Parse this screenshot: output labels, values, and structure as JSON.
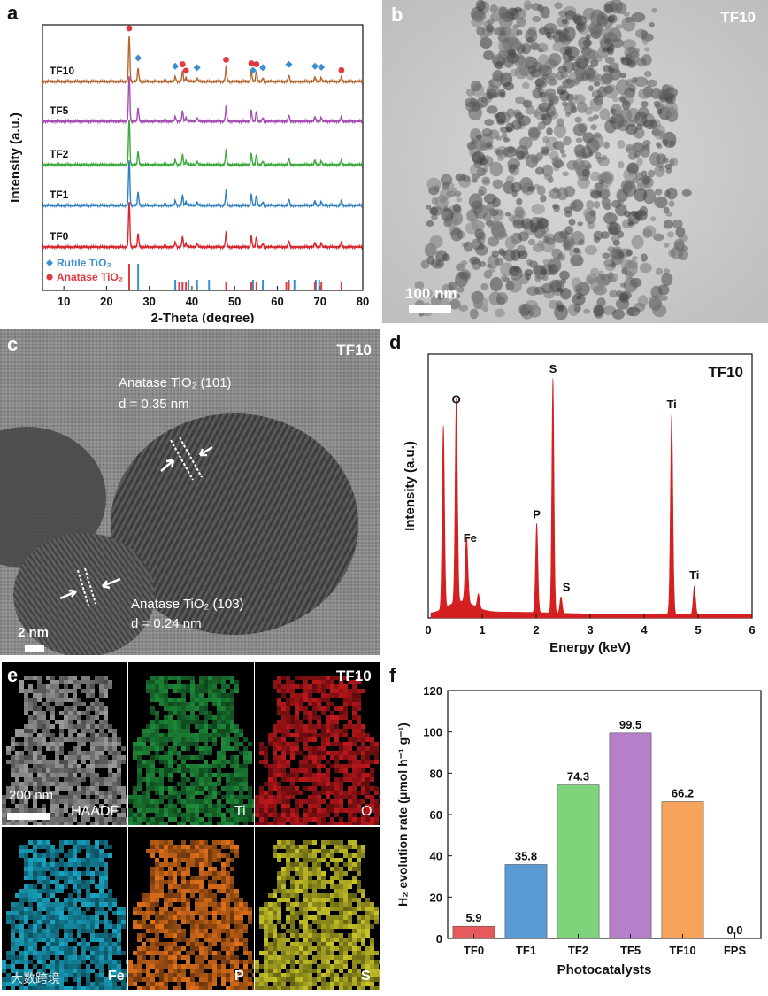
{
  "panels": {
    "a": "a",
    "b": "b",
    "c": "c",
    "d": "d",
    "e": "e",
    "f": "f"
  },
  "sample_tag": "TF10",
  "micrographs": {
    "b": {
      "scale_bar": "100 nm"
    },
    "c": {
      "scale_bar": "2 nm",
      "ann1_line1": "Anatase TiO₂ (101)",
      "ann1_line2": "d = 0.35 nm",
      "ann2_line1": "Anatase TiO₂ (103)",
      "ann2_line2": "d = 0.24 nm"
    },
    "e": {
      "scale_bar": "200 nm",
      "maps": [
        "HAADF",
        "Ti",
        "O",
        "Fe",
        "P",
        "S"
      ],
      "map_colors": [
        "#9a9a9a",
        "#1e8c3a",
        "#c0181c",
        "#1aa6c4",
        "#e0701a",
        "#c8c428"
      ]
    }
  },
  "watermark": "大数跨境",
  "chart_data": [
    {
      "type": "line",
      "panel": "a",
      "xlabel": "2-Theta (degree)",
      "ylabel": "Intensity (a.u.)",
      "xlim": [
        5,
        80
      ],
      "xticks": [
        10,
        20,
        30,
        40,
        50,
        60,
        70,
        80
      ],
      "grid": false,
      "series": [
        {
          "name": "TF10",
          "color": "#b5662e"
        },
        {
          "name": "TF5",
          "color": "#a64db3"
        },
        {
          "name": "TF2",
          "color": "#3caa3c"
        },
        {
          "name": "TF1",
          "color": "#2e7fc0"
        },
        {
          "name": "TF0",
          "color": "#d8262d"
        }
      ],
      "peaks": [
        {
          "x": 25.3,
          "h": 1.0
        },
        {
          "x": 27.4,
          "h": 0.28
        },
        {
          "x": 36.1,
          "h": 0.1
        },
        {
          "x": 37.8,
          "h": 0.22
        },
        {
          "x": 38.6,
          "h": 0.08
        },
        {
          "x": 41.2,
          "h": 0.07
        },
        {
          "x": 48.0,
          "h": 0.32
        },
        {
          "x": 53.9,
          "h": 0.24
        },
        {
          "x": 55.1,
          "h": 0.22
        },
        {
          "x": 56.6,
          "h": 0.07
        },
        {
          "x": 62.7,
          "h": 0.14
        },
        {
          "x": 68.8,
          "h": 0.1
        },
        {
          "x": 70.3,
          "h": 0.08
        },
        {
          "x": 75.0,
          "h": 0.09
        }
      ],
      "legend": [
        {
          "label": "Rutile TiO₂",
          "color": "#3b8fd1",
          "marker": "diamond"
        },
        {
          "label": "Anatase TiO₂",
          "color": "#e0393f",
          "marker": "circle"
        }
      ],
      "rutile_ref": [
        27.4,
        36.1,
        39.2,
        41.2,
        44.0,
        54.3,
        56.6,
        62.7,
        64.0,
        69.0,
        69.8
      ],
      "anatase_ref": [
        25.3,
        37.0,
        37.8,
        38.6,
        48.0,
        53.9,
        55.1,
        62.1,
        62.7,
        68.8,
        70.3,
        75.0
      ],
      "markers_rutile": [
        27.4,
        36.1,
        41.2,
        54.3,
        56.6,
        62.7,
        68.8,
        70.3
      ],
      "markers_anatase": [
        25.3,
        37.8,
        38.6,
        48.0,
        53.9,
        55.1,
        75.0
      ]
    },
    {
      "type": "area",
      "panel": "d",
      "title": "TF10",
      "xlabel": "Energy (keV)",
      "ylabel": "Intensity (a.u.)",
      "xlim": [
        0,
        6
      ],
      "xticks": [
        0,
        1,
        2,
        3,
        4,
        5,
        6
      ],
      "color": "#d42020",
      "peaks": [
        {
          "x": 0.28,
          "h": 0.78,
          "w": 0.03
        },
        {
          "x": 0.52,
          "h": 0.87,
          "w": 0.03
        },
        {
          "x": 0.71,
          "h": 0.28,
          "w": 0.035
        },
        {
          "x": 0.93,
          "h": 0.06,
          "w": 0.03
        },
        {
          "x": 2.01,
          "h": 0.38,
          "w": 0.03
        },
        {
          "x": 2.31,
          "h": 1.0,
          "w": 0.028
        },
        {
          "x": 2.46,
          "h": 0.07,
          "w": 0.03
        },
        {
          "x": 4.51,
          "h": 0.85,
          "w": 0.032
        },
        {
          "x": 4.93,
          "h": 0.12,
          "w": 0.03
        }
      ],
      "labels": [
        {
          "text": "O",
          "x": 0.52,
          "h": 0.87
        },
        {
          "text": "Fe",
          "x": 0.71,
          "h": 0.28
        },
        {
          "text": "P",
          "x": 2.01,
          "h": 0.38
        },
        {
          "text": "S",
          "x": 2.31,
          "h": 1.0
        },
        {
          "text": "S",
          "x": 2.46,
          "h": 0.07
        },
        {
          "text": "Ti",
          "x": 4.51,
          "h": 0.85
        },
        {
          "text": "Ti",
          "x": 4.93,
          "h": 0.12
        }
      ]
    },
    {
      "type": "bar",
      "panel": "f",
      "xlabel": "Photocatalysts",
      "ylabel": "H₂ evolution rate (μmol h⁻¹ g⁻¹)",
      "ylim": [
        0,
        120
      ],
      "yticks": [
        0,
        20,
        40,
        60,
        80,
        100,
        120
      ],
      "categories": [
        "TF0",
        "TF1",
        "TF2",
        "TF5",
        "TF10",
        "FPS"
      ],
      "values": [
        5.9,
        35.8,
        74.3,
        99.5,
        66.2,
        0.0
      ],
      "value_labels": [
        "5.9",
        "35.8",
        "74.3",
        "99.5",
        "66.2",
        "0.0"
      ],
      "colors": [
        "#e8595c",
        "#5b9bd5",
        "#7ed47a",
        "#b77fc9",
        "#f7a35c",
        "#888888"
      ]
    }
  ]
}
